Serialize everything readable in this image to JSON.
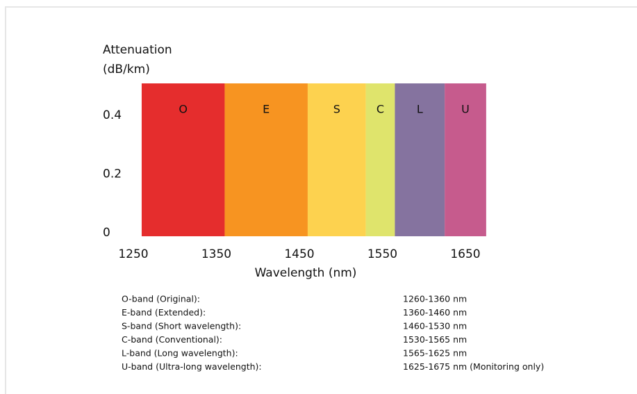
{
  "chart_data": {
    "type": "band",
    "ylabel": [
      "Attenuation",
      "(dB/km)"
    ],
    "xlabel": "Wavelength (nm)",
    "bands": [
      {
        "name": "O",
        "start": 1260,
        "end": 1360,
        "color": "#e52d2d"
      },
      {
        "name": "E",
        "start": 1360,
        "end": 1460,
        "color": "#f79421"
      },
      {
        "name": "S",
        "start": 1460,
        "end": 1530,
        "color": "#fdd24f"
      },
      {
        "name": "C",
        "start": 1530,
        "end": 1565,
        "color": "#dfe46c"
      },
      {
        "name": "L",
        "start": 1565,
        "end": 1625,
        "color": "#85739f"
      },
      {
        "name": "U",
        "start": 1625,
        "end": 1675,
        "color": "#c65b8d"
      }
    ],
    "xlim": [
      1250,
      1650
    ],
    "xticks": [
      1250,
      1350,
      1450,
      1550,
      1650
    ],
    "ylim": [
      0,
      0.52
    ],
    "yticks": [
      0,
      0.2,
      0.4
    ],
    "grid": false
  },
  "table": {
    "rows": [
      [
        "O-band (Original):",
        "1260-1360 nm"
      ],
      [
        "E-band (Extended):",
        "1360-1460 nm"
      ],
      [
        "S-band (Short wavelength):",
        "1460-1530 nm"
      ],
      [
        "C-band (Conventional):",
        "1530-1565 nm"
      ],
      [
        "L-band (Long wavelength):",
        "1565-1625 nm"
      ],
      [
        "U-band (Ultra-long wavelength):",
        "1625-1675 nm (Monitoring only)"
      ]
    ]
  }
}
